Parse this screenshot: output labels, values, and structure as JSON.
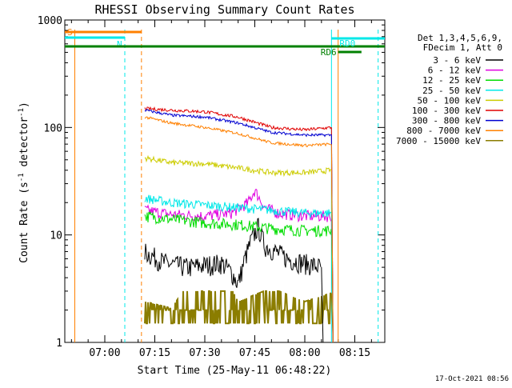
{
  "chart_data": {
    "type": "line",
    "title": "RHESSI Observing Summary Count Rates",
    "xlabel": "Start Time (25-May-11 06:48:22)",
    "ylabel": "Count Rate (s-1 detector-1)",
    "ylabel_parts": {
      "base": "Count Rate (s",
      "sup1": "-1",
      "mid": " detector",
      "sup2": "-1",
      "end": ")"
    },
    "yscale": "log",
    "ylim": [
      1,
      1000
    ],
    "xlim": [
      "06:48",
      "08:24"
    ],
    "x_tick_labels": [
      "07:00",
      "07:15",
      "07:30",
      "07:45",
      "08:00",
      "08:15"
    ],
    "y_tick_labels": [
      "1",
      "10",
      "100",
      "1000"
    ],
    "timestamp": "17-Oct-2021 08:56",
    "legend_header": [
      "Det 1,3,4,5,6,9,",
      "FDecim 1, Att 0"
    ],
    "series": [
      {
        "name": "3 - 6 keV",
        "color": "#000000"
      },
      {
        "name": "6 - 12 keV",
        "color": "#e000e0"
      },
      {
        "name": "12 - 25 keV",
        "color": "#00dd00"
      },
      {
        "name": "25 - 50 keV",
        "color": "#00e8e8"
      },
      {
        "name": "50 - 100 keV",
        "color": "#cccc00"
      },
      {
        "name": "100 - 300 keV",
        "color": "#e00000"
      },
      {
        "name": "300 - 800 keV",
        "color": "#0000d0"
      },
      {
        "name": "800 - 7000 keV",
        "color": "#ff8000"
      },
      {
        "name": "7000 - 15000 keV",
        "color": "#8b7d00"
      }
    ],
    "series_points": [
      [
        [
          "07:12",
          7
        ],
        [
          "07:18",
          5.5
        ],
        [
          "07:25",
          5
        ],
        [
          "07:35",
          5.5
        ],
        [
          "07:38",
          4.5
        ],
        [
          "07:40",
          3.5
        ],
        [
          "07:42",
          6
        ],
        [
          "07:44",
          9
        ],
        [
          "07:46",
          12
        ],
        [
          "07:48",
          8
        ],
        [
          "07:55",
          6
        ],
        [
          "08:05",
          5
        ]
      ],
      [
        [
          "07:12",
          17
        ],
        [
          "07:20",
          15.5
        ],
        [
          "07:30",
          15
        ],
        [
          "07:38",
          16
        ],
        [
          "07:43",
          20
        ],
        [
          "07:45",
          26
        ],
        [
          "07:48",
          18
        ],
        [
          "07:52",
          16
        ],
        [
          "08:00",
          15
        ],
        [
          "08:08",
          15
        ]
      ],
      [
        [
          "07:12",
          15
        ],
        [
          "07:20",
          14
        ],
        [
          "07:30",
          13
        ],
        [
          "07:40",
          12.5
        ],
        [
          "07:50",
          11.5
        ],
        [
          "08:00",
          11
        ],
        [
          "08:08",
          11
        ]
      ],
      [
        [
          "07:12",
          22
        ],
        [
          "07:20",
          20
        ],
        [
          "07:30",
          19
        ],
        [
          "07:40",
          18
        ],
        [
          "07:50",
          17
        ],
        [
          "08:00",
          16
        ],
        [
          "08:08",
          16
        ]
      ],
      [
        [
          "07:12",
          52
        ],
        [
          "07:20",
          47
        ],
        [
          "07:30",
          46
        ],
        [
          "07:40",
          42
        ],
        [
          "07:50",
          38
        ],
        [
          "08:00",
          38
        ],
        [
          "08:08",
          40
        ]
      ],
      [
        [
          "07:12",
          150
        ],
        [
          "07:20",
          145
        ],
        [
          "07:30",
          140
        ],
        [
          "07:40",
          125
        ],
        [
          "07:50",
          100
        ],
        [
          "08:00",
          95
        ],
        [
          "08:08",
          100
        ]
      ],
      [
        [
          "07:12",
          145
        ],
        [
          "07:20",
          130
        ],
        [
          "07:30",
          125
        ],
        [
          "07:40",
          110
        ],
        [
          "07:50",
          90
        ],
        [
          "08:00",
          85
        ],
        [
          "08:08",
          85
        ]
      ],
      [
        [
          "07:12",
          125
        ],
        [
          "07:20",
          110
        ],
        [
          "07:30",
          100
        ],
        [
          "07:40",
          88
        ],
        [
          "07:50",
          72
        ],
        [
          "08:00",
          68
        ],
        [
          "08:08",
          70
        ]
      ],
      [
        [
          "07:12",
          1.5
        ],
        [
          "07:20",
          1.3
        ],
        [
          "07:28",
          3
        ],
        [
          "07:34",
          3.5
        ],
        [
          "07:40",
          1.5
        ],
        [
          "07:50",
          2
        ],
        [
          "08:00",
          1.5
        ],
        [
          "08:08",
          1.8
        ]
      ]
    ],
    "flag_bars": [
      {
        "label": "S",
        "color": "#ff8000",
        "start": "06:48",
        "end": "07:11"
      },
      {
        "label": "N",
        "color": "#00e8e8",
        "start": "06:48",
        "end": "07:06"
      },
      {
        "label": "",
        "color": "#008000",
        "start": "06:48",
        "end": "08:24"
      },
      {
        "label": "RD0",
        "color": "#00e8e8",
        "start": "08:08",
        "end": "08:24"
      },
      {
        "label": "RD6",
        "color": "#008000",
        "start": "08:10",
        "end": "08:17"
      }
    ],
    "vlines": [
      {
        "time": "06:51",
        "color": "#ff8000",
        "style": "solid"
      },
      {
        "time": "07:06",
        "color": "#00e8e8",
        "style": "dashed"
      },
      {
        "time": "07:11",
        "color": "#ff8000",
        "style": "dashed"
      },
      {
        "time": "08:08",
        "color": "#00e8e8",
        "style": "solid"
      },
      {
        "time": "08:10",
        "color": "#ff8000",
        "style": "solid"
      },
      {
        "time": "08:22",
        "color": "#00e8e8",
        "style": "dashed"
      }
    ]
  }
}
